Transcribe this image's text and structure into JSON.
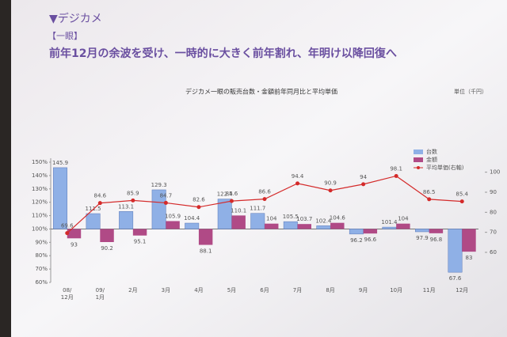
{
  "chart_data": {
    "type": "bar-line",
    "section": "▼デジカメ",
    "subsection": "【一眼】",
    "headline": "前年12月の余波を受け、一時的に大きく前年割れ、年明け以降回復へ",
    "title": "デジカメ一眼の販売台数・金額前年同月比と平均単価",
    "y2_unit": "単位（千円）",
    "categories": [
      "08/\n12月",
      "09/\n1月",
      "2月",
      "3月",
      "4月",
      "5月",
      "6月",
      "7月",
      "8月",
      "9月",
      "10月",
      "11月",
      "12月"
    ],
    "series": [
      {
        "name": "台数",
        "color": "#8fb0e6",
        "values": [
          145.9,
          111.5,
          113.1,
          129.3,
          104.4,
          122.4,
          111.7,
          105.5,
          102.4,
          96.2,
          101.4,
          97.9,
          67.6
        ]
      },
      {
        "name": "金額",
        "color": "#b04a86",
        "values": [
          93.0,
          90.2,
          95.1,
          105.9,
          88.1,
          110.1,
          104.0,
          103.7,
          104.6,
          96.6,
          104.0,
          96.8,
          83.0
        ]
      },
      {
        "name": "平均単価(右軸)",
        "color": "#d42a2a",
        "axis": "y2",
        "values": [
          69.6,
          84.6,
          85.9,
          84.7,
          82.6,
          85.6,
          86.6,
          94.4,
          90.9,
          94.0,
          98.1,
          86.5,
          85.4
        ]
      }
    ],
    "ylim": [
      60,
      150
    ],
    "yticks": [
      {
        "value": 60,
        "label": "60%"
      },
      {
        "value": 70,
        "label": "70%"
      },
      {
        "value": 80,
        "label": "80%"
      },
      {
        "value": 90,
        "label": "90%"
      },
      {
        "value": 100,
        "label": "100%"
      },
      {
        "value": 110,
        "label": "110%"
      },
      {
        "value": 120,
        "label": "120%"
      },
      {
        "value": 130,
        "label": "130%"
      },
      {
        "value": 140,
        "label": "140%"
      },
      {
        "value": 150,
        "label": "150%"
      }
    ],
    "y2lim": [
      45,
      105
    ],
    "y2ticks": [
      60,
      70,
      80,
      90,
      100
    ]
  }
}
